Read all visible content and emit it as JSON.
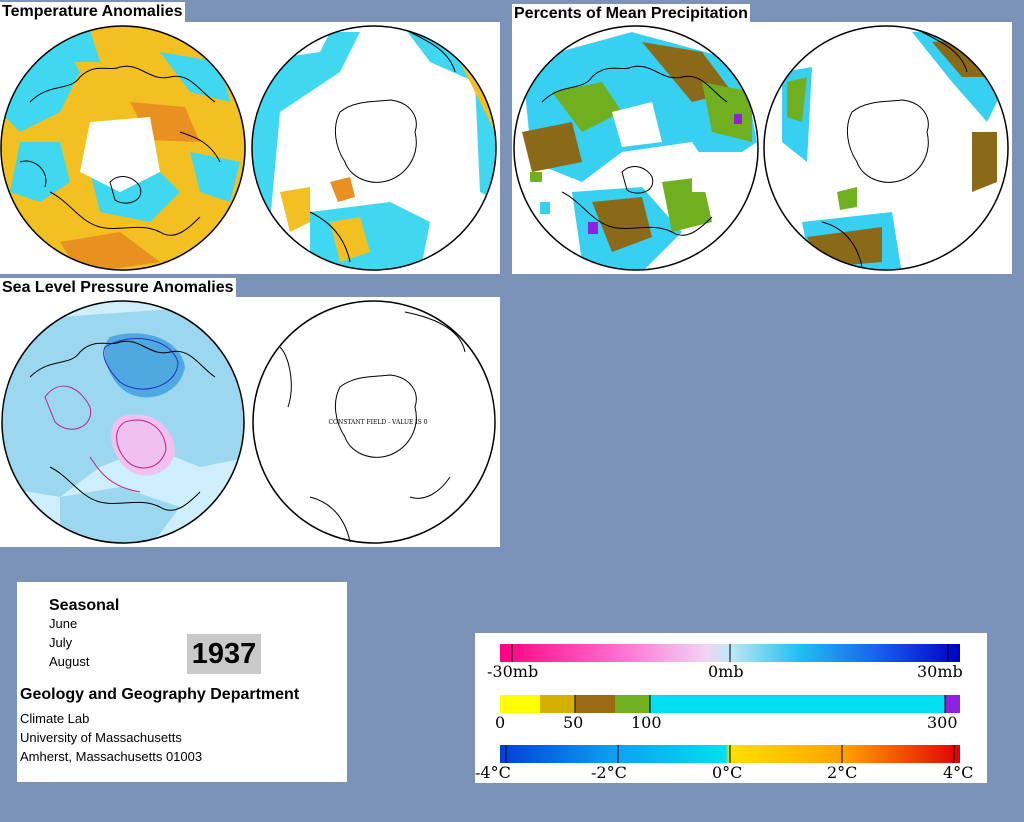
{
  "panels": {
    "temperature": {
      "title": "Temperature Anomalies"
    },
    "precipitation": {
      "title": "Percents of Mean Precipitation"
    },
    "pressure": {
      "title": "Sea Level Pressure Anomalies",
      "constant_field_note": "CONSTANT FIELD - VALUE IS 0"
    }
  },
  "info": {
    "season_label": "Seasonal",
    "months": [
      "June",
      "July",
      "August"
    ],
    "year": "1937",
    "department": "Geology and Geography Department",
    "address": [
      "Climate Lab",
      "University of Massachusetts",
      "Amherst, Massachusetts 01003"
    ]
  },
  "legends": {
    "pressure": {
      "ticks": [
        "-30mb",
        "0mb",
        "30mb"
      ],
      "colors": [
        "#ff0080",
        "#ff6ad0",
        "#f0b6f0",
        "#c0e8f4",
        "#20c0f0",
        "#1a60f0",
        "#0000c8"
      ]
    },
    "precipitation": {
      "ticks": [
        "0",
        "50",
        "100",
        "300"
      ],
      "colors": [
        "#ffff00",
        "#d4b000",
        "#9a6a10",
        "#70b020",
        "#00e0f0",
        "#9020e0"
      ]
    },
    "temperature": {
      "ticks": [
        "-4°C",
        "-2°C",
        "0°C",
        "2°C",
        "4°C"
      ],
      "colors": [
        "#0050e0",
        "#10a0f0",
        "#00e0f0",
        "#ffe000",
        "#ffa000",
        "#f05000",
        "#e00000"
      ]
    }
  },
  "colors": {
    "background": "#7b93b8",
    "land_outline": "#000000",
    "warm": "#f2c020",
    "warm_strong": "#e89020",
    "cool": "#40d8f0",
    "precip_dry": "#8a6a18",
    "precip_mid": "#70b020",
    "precip_wet": "#38d0f0",
    "pressure_low": "#9bd8f0",
    "pressure_base": "#cdeefa",
    "pressure_high": "#f0c0f0"
  }
}
